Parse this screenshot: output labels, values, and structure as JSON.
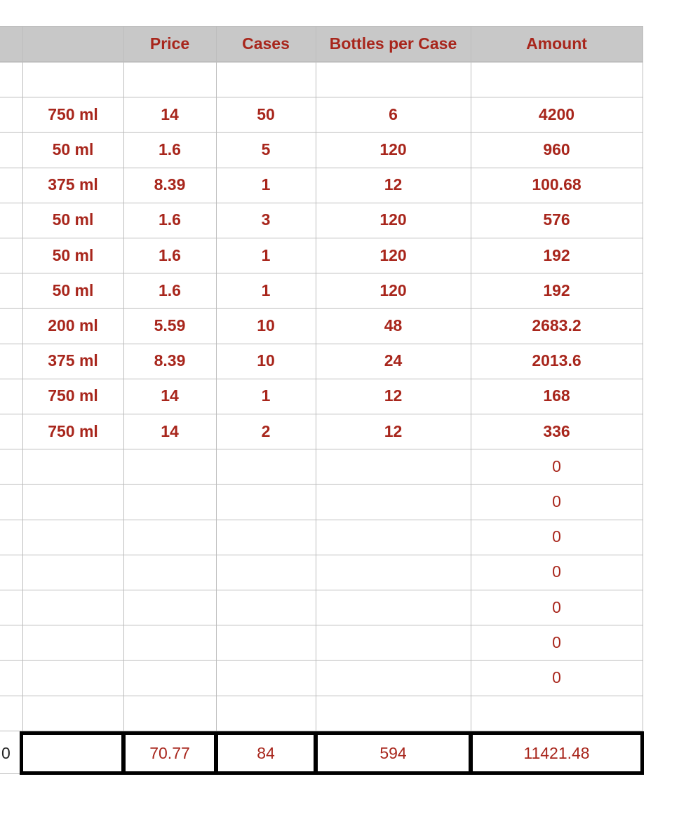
{
  "headers": [
    "",
    "Price",
    "Cases",
    "Bottles per Case",
    "Amount"
  ],
  "rows": [
    [
      "",
      "",
      "",
      "",
      ""
    ],
    [
      "750 ml",
      "14",
      "50",
      "6",
      "4200"
    ],
    [
      "50 ml",
      "1.6",
      "5",
      "120",
      "960"
    ],
    [
      "375 ml",
      "8.39",
      "1",
      "12",
      "100.68"
    ],
    [
      "50 ml",
      "1.6",
      "3",
      "120",
      "576"
    ],
    [
      "50 ml",
      "1.6",
      "1",
      "120",
      "192"
    ],
    [
      "50 ml",
      "1.6",
      "1",
      "120",
      "192"
    ],
    [
      "200 ml",
      "5.59",
      "10",
      "48",
      "2683.2"
    ],
    [
      "375 ml",
      "8.39",
      "10",
      "24",
      "2013.6"
    ],
    [
      "750 ml",
      "14",
      "1",
      "12",
      "168"
    ],
    [
      "750 ml",
      "14",
      "2",
      "12",
      "336"
    ],
    [
      "",
      "",
      "",
      "",
      "0"
    ],
    [
      "",
      "",
      "",
      "",
      "0"
    ],
    [
      "",
      "",
      "",
      "",
      "0"
    ],
    [
      "",
      "",
      "",
      "",
      "0"
    ],
    [
      "",
      "",
      "",
      "",
      "0"
    ],
    [
      "",
      "",
      "",
      "",
      "0"
    ],
    [
      "",
      "",
      "",
      "",
      "0"
    ],
    [
      "",
      "",
      "",
      "",
      ""
    ]
  ],
  "totals": [
    "",
    "70.77",
    "84",
    "594",
    "11421.48"
  ],
  "left_edge_value": "0",
  "colors": {
    "text": "#a8261c",
    "header_bg": "#c8c8c8",
    "grid": "#bdbdbd",
    "total_border": "#000000"
  }
}
